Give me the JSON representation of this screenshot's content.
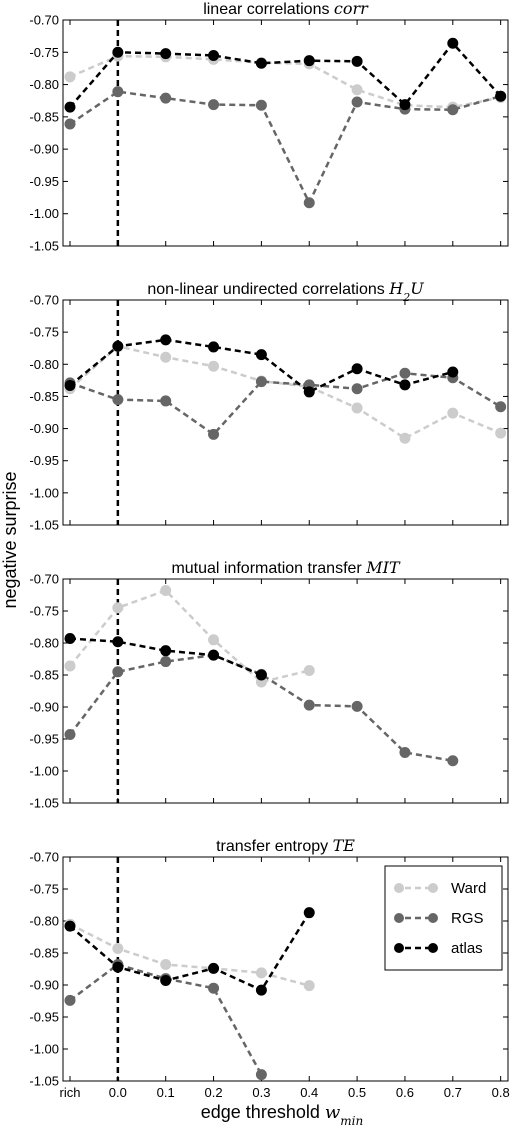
{
  "figure": {
    "ylabel": "negative surprise",
    "xlabel_text": "edge threshold ",
    "xlabel_math_main": "w",
    "xlabel_math_sub": "min"
  },
  "chart_data": [
    {
      "type": "line",
      "title": "linear correlations ",
      "title_math": "corr",
      "title_math_sub": "",
      "title_math_tail": "",
      "x_categories": [
        "rich",
        "0.0",
        "0.1",
        "0.2",
        "0.3",
        "0.4",
        "0.5",
        "0.6",
        "0.7",
        "0.8"
      ],
      "ylim": [
        -1.05,
        -0.7
      ],
      "yticks": [
        -0.7,
        -0.75,
        -0.8,
        -0.85,
        -0.9,
        -0.95,
        -1.0,
        -1.05
      ],
      "ytick_labels": [
        "-0.70",
        "-0.75",
        "-0.80",
        "-0.85",
        "-0.90",
        "-0.95",
        "-1.00",
        "-1.05"
      ],
      "vline_at_category": "0.0",
      "show_legend": false,
      "series": [
        {
          "name": "Ward",
          "color": "#cccccc",
          "values": [
            -0.788,
            -0.756,
            -0.757,
            -0.761,
            -0.766,
            -0.768,
            -0.808,
            -0.832,
            -0.835,
            -0.82
          ]
        },
        {
          "name": "RGS",
          "color": "#666666",
          "values": [
            -0.861,
            -0.811,
            -0.821,
            -0.831,
            -0.832,
            -0.983,
            -0.827,
            -0.838,
            -0.839,
            -0.818
          ]
        },
        {
          "name": "atlas",
          "color": "#000000",
          "values": [
            -0.835,
            -0.75,
            -0.752,
            -0.755,
            -0.767,
            -0.763,
            -0.764,
            -0.831,
            -0.736,
            -0.818
          ]
        }
      ]
    },
    {
      "type": "line",
      "title": "non-linear undirected correlations ",
      "title_math": "H",
      "title_math_sub": "2",
      "title_math_tail": "U",
      "x_categories": [
        "rich",
        "0.0",
        "0.1",
        "0.2",
        "0.3",
        "0.4",
        "0.5",
        "0.6",
        "0.7",
        "0.8"
      ],
      "ylim": [
        -1.05,
        -0.7
      ],
      "yticks": [
        -0.7,
        -0.75,
        -0.8,
        -0.85,
        -0.9,
        -0.95,
        -1.0,
        -1.05
      ],
      "ytick_labels": [
        "-0.70",
        "-0.75",
        "-0.80",
        "-0.85",
        "-0.90",
        "-0.95",
        "-1.00",
        "-1.05"
      ],
      "vline_at_category": "0.0",
      "show_legend": false,
      "series": [
        {
          "name": "Ward",
          "color": "#cccccc",
          "values": [
            -0.838,
            -0.772,
            -0.789,
            -0.803,
            -0.826,
            -0.835,
            -0.868,
            -0.915,
            -0.876,
            -0.907
          ]
        },
        {
          "name": "RGS",
          "color": "#666666",
          "values": [
            -0.829,
            -0.855,
            -0.857,
            -0.909,
            -0.827,
            -0.832,
            -0.838,
            -0.814,
            -0.821,
            -0.866
          ]
        },
        {
          "name": "atlas",
          "color": "#000000",
          "values": [
            -0.833,
            -0.772,
            -0.762,
            -0.773,
            -0.785,
            -0.843,
            -0.807,
            -0.832,
            -0.812,
            null
          ]
        }
      ]
    },
    {
      "type": "line",
      "title": "mutual information transfer ",
      "title_math": "MIT",
      "title_math_sub": "",
      "title_math_tail": "",
      "x_categories": [
        "rich",
        "0.0",
        "0.1",
        "0.2",
        "0.3",
        "0.4",
        "0.5",
        "0.6",
        "0.7",
        "0.8"
      ],
      "ylim": [
        -1.05,
        -0.7
      ],
      "yticks": [
        -0.7,
        -0.75,
        -0.8,
        -0.85,
        -0.9,
        -0.95,
        -1.0,
        -1.05
      ],
      "ytick_labels": [
        "-0.70",
        "-0.75",
        "-0.80",
        "-0.85",
        "-0.90",
        "-0.95",
        "-1.00",
        "-1.05"
      ],
      "vline_at_category": "0.0",
      "show_legend": false,
      "series": [
        {
          "name": "Ward",
          "color": "#cccccc",
          "values": [
            -0.836,
            -0.745,
            -0.718,
            -0.795,
            -0.861,
            -0.843,
            null,
            null,
            null,
            null
          ]
        },
        {
          "name": "RGS",
          "color": "#666666",
          "values": [
            -0.943,
            -0.845,
            -0.829,
            -0.819,
            -0.849,
            -0.897,
            -0.899,
            -0.971,
            -0.984,
            null
          ]
        },
        {
          "name": "atlas",
          "color": "#000000",
          "values": [
            -0.793,
            -0.798,
            -0.812,
            -0.819,
            -0.85,
            null,
            null,
            null,
            null,
            null
          ]
        }
      ]
    },
    {
      "type": "line",
      "title": "transfer entropy ",
      "title_math": "TE",
      "title_math_sub": "",
      "title_math_tail": "",
      "x_categories": [
        "rich",
        "0.0",
        "0.1",
        "0.2",
        "0.3",
        "0.4",
        "0.5",
        "0.6",
        "0.7",
        "0.8"
      ],
      "ylim": [
        -1.05,
        -0.7
      ],
      "yticks": [
        -0.7,
        -0.75,
        -0.8,
        -0.85,
        -0.9,
        -0.95,
        -1.0,
        -1.05
      ],
      "ytick_labels": [
        "-0.70",
        "-0.75",
        "-0.80",
        "-0.85",
        "-0.90",
        "-0.95",
        "-1.00",
        "-1.05"
      ],
      "vline_at_category": "0.0",
      "show_legend": true,
      "legend_position": "top-right",
      "series": [
        {
          "name": "Ward",
          "color": "#cccccc",
          "values": [
            -0.805,
            -0.843,
            -0.868,
            -0.874,
            -0.881,
            -0.901,
            null,
            null,
            null,
            null
          ]
        },
        {
          "name": "RGS",
          "color": "#666666",
          "values": [
            -0.924,
            -0.868,
            -0.89,
            -0.905,
            -1.04,
            null,
            null,
            null,
            null,
            null
          ]
        },
        {
          "name": "atlas",
          "color": "#000000",
          "values": [
            -0.808,
            -0.872,
            -0.893,
            -0.874,
            -0.908,
            -0.787,
            null,
            null,
            null,
            null
          ]
        }
      ]
    }
  ]
}
